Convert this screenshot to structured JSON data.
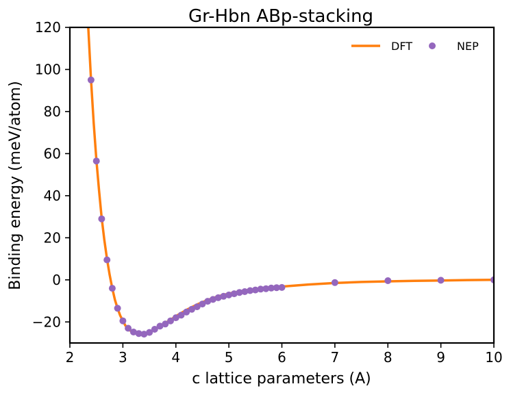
{
  "chart_data": {
    "type": "line",
    "title": "Gr-Hbn ABp-stacking",
    "xlabel": "c lattice parameters (A)",
    "ylabel": "Binding energy (meV/atom)",
    "xlim": [
      2,
      10
    ],
    "ylim": [
      -30,
      120
    ],
    "xticks": [
      2,
      3,
      4,
      5,
      6,
      7,
      8,
      9,
      10
    ],
    "yticks": [
      -20,
      0,
      20,
      40,
      60,
      80,
      100,
      120
    ],
    "xtick_labels": [
      "2",
      "3",
      "4",
      "5",
      "6",
      "7",
      "8",
      "9",
      "10"
    ],
    "ytick_labels": [
      "−20",
      "0",
      "20",
      "40",
      "60",
      "80",
      "100",
      "120"
    ],
    "grid": false,
    "legend_position": "top-right",
    "series": [
      {
        "name": "DFT",
        "style": "line",
        "color": "#ff7f0e",
        "x": [
          2.3,
          2.35,
          2.4,
          2.45,
          2.5,
          2.55,
          2.6,
          2.65,
          2.7,
          2.75,
          2.8,
          2.85,
          2.9,
          2.95,
          3.0,
          3.05,
          3.1,
          3.15,
          3.2,
          3.25,
          3.3,
          3.35,
          3.4,
          3.45,
          3.5,
          3.6,
          3.7,
          3.8,
          3.9,
          4.0,
          4.2,
          4.4,
          4.6,
          4.8,
          5.0,
          5.2,
          5.4,
          5.6,
          5.8,
          6.0,
          6.5,
          7.0,
          7.5,
          8.0,
          8.5,
          9.0,
          9.5,
          10.0
        ],
        "y": [
          140.0,
          118.5,
          95.0,
          74.5,
          57.0,
          42.5,
          29.5,
          19.0,
          10.0,
          2.5,
          -4.0,
          -9.5,
          -13.5,
          -17.0,
          -19.5,
          -21.8,
          -23.2,
          -24.3,
          -25.0,
          -25.5,
          -25.7,
          -25.7,
          -25.6,
          -25.3,
          -24.8,
          -23.5,
          -22.0,
          -20.5,
          -19.0,
          -17.2,
          -14.3,
          -11.7,
          -9.6,
          -7.8,
          -6.5,
          -5.5,
          -4.7,
          -4.0,
          -3.5,
          -3.2,
          -2.2,
          -1.5,
          -1.0,
          -0.7,
          -0.5,
          -0.3,
          -0.1,
          0.0
        ]
      },
      {
        "name": "NEP",
        "style": "scatter",
        "color": "#9467bd",
        "x": [
          2.4,
          2.5,
          2.6,
          2.7,
          2.8,
          2.9,
          3.0,
          3.1,
          3.2,
          3.3,
          3.4,
          3.5,
          3.6,
          3.7,
          3.8,
          3.9,
          4.0,
          4.1,
          4.2,
          4.3,
          4.4,
          4.5,
          4.6,
          4.7,
          4.8,
          4.9,
          5.0,
          5.1,
          5.2,
          5.3,
          5.4,
          5.5,
          5.6,
          5.7,
          5.8,
          5.9,
          6.0,
          7.0,
          8.0,
          9.0,
          10.0
        ],
        "y": [
          95.0,
          56.5,
          29.0,
          9.5,
          -4.0,
          -13.5,
          -19.5,
          -23.0,
          -24.8,
          -25.5,
          -25.8,
          -25.0,
          -23.5,
          -22.0,
          -21.0,
          -19.5,
          -18.0,
          -16.8,
          -15.3,
          -14.0,
          -12.8,
          -11.5,
          -10.2,
          -9.3,
          -8.5,
          -7.8,
          -7.2,
          -6.6,
          -6.0,
          -5.6,
          -5.1,
          -4.8,
          -4.4,
          -4.2,
          -3.9,
          -3.7,
          -3.6,
          -1.3,
          -0.4,
          -0.2,
          0.0
        ]
      }
    ]
  }
}
